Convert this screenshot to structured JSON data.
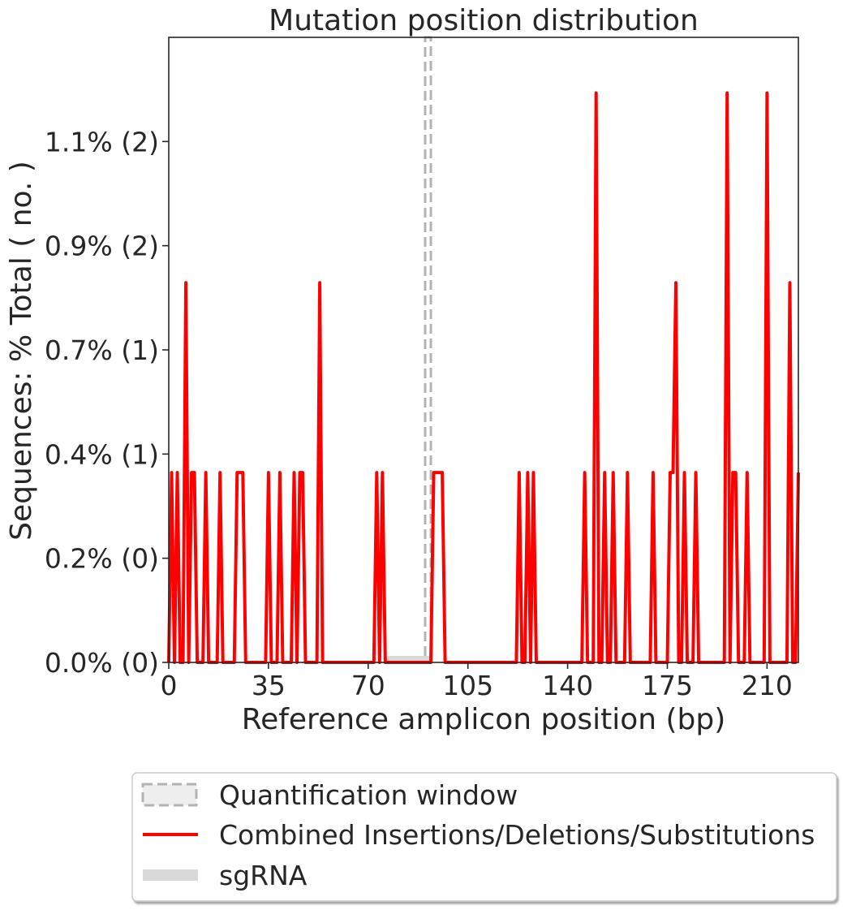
{
  "chart_data": {
    "type": "line",
    "title": "Mutation position distribution",
    "xlabel": "Reference amplicon position (bp)",
    "ylabel": "Sequences: % Total ( no. )",
    "xlim": [
      0,
      221
    ],
    "ylim": [
      0,
      1.35
    ],
    "x_ticks": [
      0,
      35,
      70,
      105,
      140,
      175,
      210
    ],
    "x_tick_labels": [
      "0",
      "35",
      "70",
      "105",
      "140",
      "175",
      "210"
    ],
    "y_ticks": [
      0,
      0.225,
      0.45,
      0.675,
      0.9,
      1.125
    ],
    "y_tick_labels": [
      "0.0% (0)",
      "0.2% (0)",
      "0.4% (1)",
      "0.7% (1)",
      "0.9% (2)",
      "1.1% (2)"
    ],
    "quantification_window": [
      90,
      92
    ],
    "sgrna": [
      76,
      92
    ],
    "series": [
      {
        "name": "Combined Insertions/Deletions/Substitutions",
        "color": "#ff0000",
        "points": [
          [
            0,
            0
          ],
          [
            1,
            0.41
          ],
          [
            2,
            0
          ],
          [
            3,
            0.41
          ],
          [
            4,
            0
          ],
          [
            5,
            0
          ],
          [
            6,
            0.82
          ],
          [
            7,
            0
          ],
          [
            8,
            0.41
          ],
          [
            9,
            0.41
          ],
          [
            10,
            0
          ],
          [
            11,
            0
          ],
          [
            12,
            0
          ],
          [
            13,
            0.41
          ],
          [
            14,
            0
          ],
          [
            15,
            0
          ],
          [
            16,
            0
          ],
          [
            17,
            0
          ],
          [
            18,
            0.41
          ],
          [
            19,
            0
          ],
          [
            20,
            0
          ],
          [
            21,
            0
          ],
          [
            22,
            0
          ],
          [
            23,
            0
          ],
          [
            24,
            0.41
          ],
          [
            25,
            0.41
          ],
          [
            26,
            0.41
          ],
          [
            27,
            0
          ],
          [
            28,
            0
          ],
          [
            29,
            0
          ],
          [
            30,
            0
          ],
          [
            31,
            0
          ],
          [
            32,
            0
          ],
          [
            33,
            0
          ],
          [
            34,
            0
          ],
          [
            35,
            0.41
          ],
          [
            36,
            0
          ],
          [
            37,
            0
          ],
          [
            38,
            0
          ],
          [
            39,
            0.41
          ],
          [
            40,
            0
          ],
          [
            41,
            0
          ],
          [
            42,
            0
          ],
          [
            43,
            0
          ],
          [
            44,
            0.41
          ],
          [
            45,
            0
          ],
          [
            46,
            0.41
          ],
          [
            47,
            0.41
          ],
          [
            48,
            0
          ],
          [
            49,
            0
          ],
          [
            50,
            0
          ],
          [
            51,
            0
          ],
          [
            52,
            0
          ],
          [
            53,
            0.82
          ],
          [
            54,
            0
          ],
          [
            55,
            0
          ],
          [
            56,
            0
          ],
          [
            57,
            0
          ],
          [
            58,
            0
          ],
          [
            59,
            0
          ],
          [
            60,
            0
          ],
          [
            61,
            0
          ],
          [
            62,
            0
          ],
          [
            63,
            0
          ],
          [
            64,
            0
          ],
          [
            65,
            0
          ],
          [
            66,
            0
          ],
          [
            67,
            0
          ],
          [
            68,
            0
          ],
          [
            69,
            0
          ],
          [
            70,
            0
          ],
          [
            71,
            0
          ],
          [
            72,
            0
          ],
          [
            73,
            0.41
          ],
          [
            74,
            0
          ],
          [
            75,
            0.41
          ],
          [
            76,
            0
          ],
          [
            77,
            0
          ],
          [
            78,
            0
          ],
          [
            79,
            0
          ],
          [
            80,
            0
          ],
          [
            81,
            0
          ],
          [
            82,
            0
          ],
          [
            83,
            0
          ],
          [
            84,
            0
          ],
          [
            85,
            0
          ],
          [
            86,
            0
          ],
          [
            87,
            0
          ],
          [
            88,
            0
          ],
          [
            89,
            0
          ],
          [
            90,
            0
          ],
          [
            91,
            0
          ],
          [
            92,
            0
          ],
          [
            93,
            0.41
          ],
          [
            94,
            0.41
          ],
          [
            95,
            0.41
          ],
          [
            96,
            0.41
          ],
          [
            97,
            0
          ],
          [
            98,
            0
          ],
          [
            99,
            0
          ],
          [
            100,
            0
          ],
          [
            101,
            0
          ],
          [
            102,
            0
          ],
          [
            103,
            0
          ],
          [
            104,
            0
          ],
          [
            105,
            0
          ],
          [
            106,
            0
          ],
          [
            107,
            0
          ],
          [
            108,
            0
          ],
          [
            109,
            0
          ],
          [
            110,
            0
          ],
          [
            111,
            0
          ],
          [
            112,
            0
          ],
          [
            113,
            0
          ],
          [
            114,
            0
          ],
          [
            115,
            0
          ],
          [
            116,
            0
          ],
          [
            117,
            0
          ],
          [
            118,
            0
          ],
          [
            119,
            0
          ],
          [
            120,
            0
          ],
          [
            121,
            0
          ],
          [
            122,
            0
          ],
          [
            123,
            0.41
          ],
          [
            124,
            0
          ],
          [
            125,
            0
          ],
          [
            126,
            0.41
          ],
          [
            127,
            0
          ],
          [
            128,
            0.41
          ],
          [
            129,
            0
          ],
          [
            130,
            0
          ],
          [
            131,
            0
          ],
          [
            132,
            0
          ],
          [
            133,
            0
          ],
          [
            134,
            0
          ],
          [
            135,
            0
          ],
          [
            136,
            0
          ],
          [
            137,
            0
          ],
          [
            138,
            0
          ],
          [
            139,
            0
          ],
          [
            140,
            0
          ],
          [
            141,
            0
          ],
          [
            142,
            0
          ],
          [
            143,
            0
          ],
          [
            144,
            0
          ],
          [
            145,
            0
          ],
          [
            146,
            0.41
          ],
          [
            147,
            0
          ],
          [
            148,
            0
          ],
          [
            149,
            0
          ],
          [
            150,
            1.23
          ],
          [
            151,
            0
          ],
          [
            152,
            0
          ],
          [
            153,
            0.41
          ],
          [
            154,
            0
          ],
          [
            155,
            0
          ],
          [
            156,
            0.41
          ],
          [
            157,
            0
          ],
          [
            158,
            0
          ],
          [
            159,
            0
          ],
          [
            160,
            0
          ],
          [
            161,
            0.41
          ],
          [
            162,
            0
          ],
          [
            163,
            0
          ],
          [
            164,
            0
          ],
          [
            165,
            0
          ],
          [
            166,
            0
          ],
          [
            167,
            0
          ],
          [
            168,
            0
          ],
          [
            169,
            0
          ],
          [
            170,
            0.41
          ],
          [
            171,
            0
          ],
          [
            172,
            0
          ],
          [
            173,
            0
          ],
          [
            174,
            0
          ],
          [
            175,
            0
          ],
          [
            176,
            0.41
          ],
          [
            177,
            0.41
          ],
          [
            178,
            0.82
          ],
          [
            179,
            0
          ],
          [
            180,
            0
          ],
          [
            181,
            0.41
          ],
          [
            182,
            0
          ],
          [
            183,
            0
          ],
          [
            184,
            0
          ],
          [
            185,
            0.41
          ],
          [
            186,
            0
          ],
          [
            187,
            0
          ],
          [
            188,
            0
          ],
          [
            189,
            0
          ],
          [
            190,
            0
          ],
          [
            191,
            0
          ],
          [
            192,
            0
          ],
          [
            193,
            0
          ],
          [
            194,
            0
          ],
          [
            195,
            0
          ],
          [
            196,
            1.23
          ],
          [
            197,
            0
          ],
          [
            198,
            0.41
          ],
          [
            199,
            0.41
          ],
          [
            200,
            0
          ],
          [
            201,
            0
          ],
          [
            202,
            0
          ],
          [
            203,
            0.41
          ],
          [
            204,
            0
          ],
          [
            205,
            0
          ],
          [
            206,
            0
          ],
          [
            207,
            0
          ],
          [
            208,
            0
          ],
          [
            209,
            0
          ],
          [
            210,
            1.23
          ],
          [
            211,
            0
          ],
          [
            212,
            0
          ],
          [
            213,
            0
          ],
          [
            214,
            0
          ],
          [
            215,
            0
          ],
          [
            216,
            0
          ],
          [
            217,
            0
          ],
          [
            218,
            0.82
          ],
          [
            219,
            0
          ],
          [
            220,
            0
          ],
          [
            221,
            0.41
          ]
        ]
      }
    ],
    "legend": {
      "placement": "below",
      "entries": [
        {
          "label": "Quantification window",
          "kind": "dashed-box",
          "color": "#b3b3b3"
        },
        {
          "label": "Combined Insertions/Deletions/Substitutions",
          "kind": "line",
          "color": "#ff0000"
        },
        {
          "label": "sgRNA",
          "kind": "thick-bar",
          "color": "#d9d9d9"
        }
      ]
    }
  }
}
